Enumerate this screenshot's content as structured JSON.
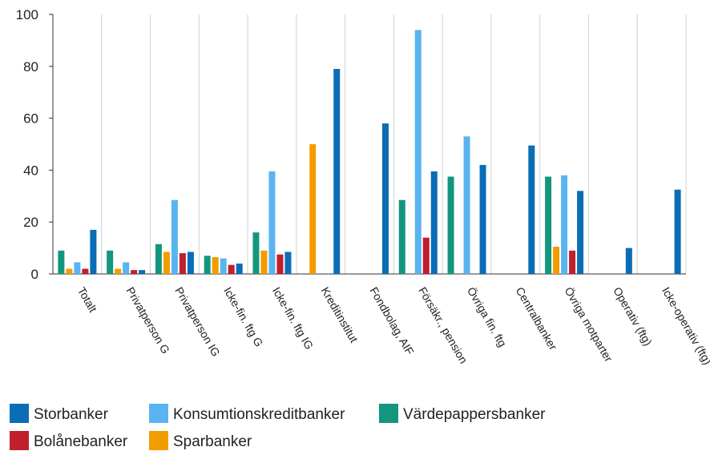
{
  "chart_data": {
    "type": "bar",
    "categories": [
      "Totalt",
      "Privatperson G",
      "Privatperson IG",
      "Icke-fin. ftg G",
      "Icke-fin. ftg IG",
      "Kreditinstitut",
      "Fondbolag, AIF",
      "Försäkr., pension",
      "Övriga fin. ftg",
      "Centralbanker",
      "Övriga motparter",
      "Operativ (ftg)",
      "Icke-operativ (ftg)"
    ],
    "series": [
      {
        "name": "Storbanker",
        "color": "#0a6db5",
        "values": [
          17,
          1.5,
          8.5,
          4,
          8.5,
          79,
          58,
          39.5,
          42,
          49.5,
          32,
          10,
          32.5
        ]
      },
      {
        "name": "Konsumtionskreditbanker",
        "color": "#5ab4f0",
        "values": [
          4.5,
          4.5,
          28.5,
          6,
          39.5,
          null,
          null,
          94,
          53,
          null,
          38,
          null,
          null
        ]
      },
      {
        "name": "Värdepappersbanker",
        "color": "#14967e",
        "values": [
          9,
          9,
          11.5,
          7,
          16,
          null,
          null,
          28.5,
          37.5,
          null,
          37.5,
          null,
          null
        ]
      },
      {
        "name": "Bolånebanker",
        "color": "#c01f2e",
        "values": [
          2,
          1.5,
          8,
          3.5,
          7.5,
          null,
          null,
          14,
          null,
          null,
          9,
          null,
          null
        ]
      },
      {
        "name": "Sparbanker",
        "color": "#f39c00",
        "values": [
          2,
          2,
          8.5,
          6.5,
          9,
          50,
          null,
          null,
          null,
          null,
          10.5,
          null,
          null
        ]
      }
    ],
    "ylim": [
      0,
      100
    ],
    "yticks": [
      0,
      20,
      40,
      60,
      80,
      100
    ]
  }
}
